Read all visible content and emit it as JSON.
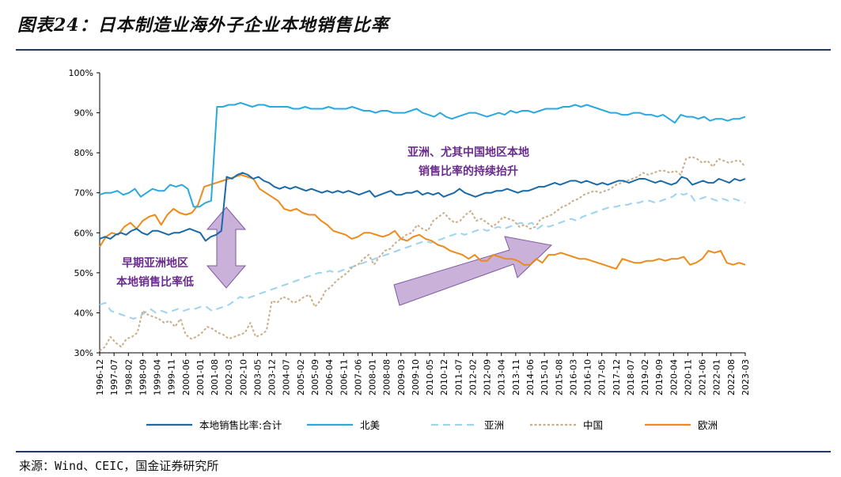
{
  "figure": {
    "title": "图表24：日本制造业海外子企业本地销售比率",
    "source": "来源：Wind、CEIC，国金证券研究所"
  },
  "colors": {
    "total": "#1a6aa8",
    "north_america": "#2aa8e0",
    "asia": "#9cd3f0",
    "china": "#c8ad86",
    "europe": "#ee8a1a",
    "annotation_text": "#6a2c8c",
    "arrow_fill": "#c9b1da",
    "arrow_stroke": "#7f5aa0",
    "title_rule": "#1f3864"
  },
  "chart_data": {
    "type": "line",
    "title": "日本制造业海外子企业本地销售比率",
    "xlabel": "",
    "ylabel": "",
    "ylim": [
      30,
      100
    ],
    "yticks": [
      "30%",
      "40%",
      "50%",
      "60%",
      "70%",
      "80%",
      "90%",
      "100%"
    ],
    "x_range": [
      "1996-12",
      "2023-03"
    ],
    "xticks": [
      "1996-12",
      "1997-07",
      "1998-02",
      "1998-09",
      "1999-04",
      "1999-11",
      "2000-06",
      "2001-01",
      "2001-08",
      "2002-03",
      "2002-10",
      "2003-05",
      "2003-12",
      "2004-07",
      "2005-02",
      "2005-09",
      "2006-04",
      "2006-11",
      "2007-06",
      "2008-01",
      "2008-08",
      "2009-03",
      "2009-10",
      "2010-05",
      "2010-12",
      "2011-07",
      "2012-02",
      "2012-09",
      "2013-04",
      "2013-11",
      "2014-06",
      "2015-01",
      "2015-08",
      "2016-03",
      "2016-10",
      "2017-05",
      "2017-12",
      "2018-07",
      "2019-02",
      "2019-09",
      "2020-04",
      "2020-11",
      "2021-06",
      "2022-01",
      "2022-08",
      "2023-03"
    ],
    "grid": false,
    "legend_position": "bottom",
    "series": [
      {
        "name": "本地销售比率:合计",
        "style": "solid",
        "start": "1996-12",
        "values": [
          58.5,
          59,
          58.5,
          59.5,
          60,
          59.5,
          60.5,
          61,
          60,
          59.5,
          60.5,
          60.5,
          60,
          59.5,
          60,
          60,
          60.5,
          61,
          60.5,
          60,
          58,
          59,
          59.5,
          60.5,
          74,
          73.5,
          74.5,
          75,
          74.5,
          73.5,
          74,
          73,
          72.5,
          71.5,
          71,
          71.5,
          71,
          71.5,
          71,
          70.5,
          71,
          70.5,
          70,
          70.5,
          70,
          70.5,
          70,
          70.5,
          70,
          69.5,
          70,
          70.5,
          69,
          69.5,
          70,
          70.5,
          69.5,
          69.5,
          70,
          70,
          70.5,
          69.5,
          70,
          69.5,
          70,
          69,
          69.5,
          70,
          71,
          70,
          69.5,
          69,
          69.5,
          70,
          70,
          70.5,
          70.5,
          71,
          70.5,
          70,
          70.5,
          70.5,
          71,
          71.5,
          71.5,
          72,
          72.5,
          72,
          72.5,
          73,
          73,
          72.5,
          73,
          72.5,
          72,
          72.5,
          72,
          72.5,
          73,
          73,
          72.5,
          73,
          73.5,
          73.5,
          73,
          72.5,
          73,
          72.5,
          72,
          72.5,
          74,
          73.5,
          72,
          72.5,
          73,
          72.5,
          72.5,
          73.5,
          73,
          72.5,
          73.5,
          73,
          73.5
        ]
      },
      {
        "name": "北美",
        "style": "solid",
        "start": "1996-12",
        "values": [
          69.5,
          70,
          70,
          70.5,
          69.5,
          70,
          71,
          69,
          70,
          71,
          70.5,
          70.5,
          72,
          71.5,
          72,
          71,
          66.5,
          66.5,
          67.5,
          68,
          91.5,
          91.5,
          92,
          92,
          92.5,
          92,
          91.5,
          92,
          92,
          91.5,
          91.5,
          91.5,
          91.5,
          91,
          91,
          91.5,
          91,
          91,
          91,
          91.5,
          91,
          91,
          91,
          91.5,
          91,
          90.5,
          90.5,
          90,
          90.5,
          90.5,
          90,
          90,
          90,
          90.5,
          91,
          90,
          89.5,
          89,
          90,
          89,
          88.5,
          89,
          89.5,
          90,
          90,
          89.5,
          89,
          89.5,
          90,
          89.5,
          90.5,
          90,
          90.5,
          90.5,
          90,
          90.5,
          91,
          91,
          91,
          91.5,
          91.5,
          92,
          91.5,
          92,
          91.5,
          91,
          90.5,
          90,
          90,
          89.5,
          89.5,
          90,
          90,
          89.5,
          89.5,
          89,
          89.5,
          88.5,
          87.5,
          89.5,
          89,
          89,
          88.5,
          89,
          88,
          88.5,
          88.5,
          88,
          88.5,
          88.5,
          89
        ]
      },
      {
        "name": "亚洲",
        "style": "dash",
        "start": "1996-12",
        "values": [
          42,
          42.5,
          40.5,
          40,
          39.5,
          39,
          38.5,
          39,
          40,
          41,
          40,
          40.5,
          40,
          40.5,
          41,
          40.5,
          41,
          41,
          41.5,
          41.5,
          40.5,
          41,
          41.5,
          42,
          43,
          44,
          43.5,
          44,
          44.5,
          45,
          45.5,
          46,
          46.5,
          47,
          47.5,
          48,
          48.5,
          49,
          49.5,
          50,
          50,
          50.5,
          50,
          50.5,
          51,
          51.5,
          52,
          52.5,
          53,
          53.5,
          54,
          54.5,
          55,
          55.5,
          56,
          56.5,
          57,
          57.5,
          58,
          57.5,
          58,
          58.5,
          59,
          59.5,
          60,
          59.5,
          60,
          60.5,
          61,
          60.5,
          61,
          61.5,
          61,
          61.5,
          62,
          62.5,
          62,
          62.5,
          61,
          62,
          61.5,
          62,
          62.5,
          63,
          63.5,
          63,
          64,
          64.5,
          65,
          65.5,
          66,
          66.5,
          66.5,
          67,
          67,
          67.5,
          67.5,
          68,
          68,
          67.5,
          68,
          68.5,
          69,
          70,
          69.5,
          70,
          68,
          68.5,
          69,
          68.5,
          68,
          68.5,
          68,
          68.5,
          68,
          67.5
        ]
      },
      {
        "name": "中国",
        "style": "dot",
        "start": "1996-12",
        "values": [
          30.5,
          31.5,
          34,
          32.5,
          31.5,
          33.5,
          34,
          35,
          40.5,
          39.5,
          39,
          38.5,
          37.5,
          38,
          36.5,
          38.5,
          34.5,
          33.5,
          34,
          35,
          36.5,
          36,
          35,
          34.5,
          33.5,
          34,
          34.5,
          35,
          37.5,
          34,
          34.5,
          35.5,
          43,
          42.5,
          44,
          43.5,
          42.5,
          43,
          44,
          44.5,
          41.5,
          43,
          45.5,
          46.5,
          48,
          49,
          50,
          51.5,
          52,
          53.5,
          54.5,
          52,
          54,
          55.5,
          56,
          57.5,
          58.5,
          59.5,
          60,
          62,
          61,
          60.5,
          63,
          64,
          65,
          63.5,
          62.5,
          63,
          64.5,
          65.5,
          63,
          63.5,
          62.5,
          61.5,
          62.5,
          64,
          63.5,
          63,
          61.5,
          62,
          61,
          61.5,
          63.5,
          64,
          64.5,
          65.5,
          66.5,
          67,
          68,
          68.5,
          69.5,
          70,
          70.5,
          70,
          70.5,
          71,
          72,
          72.5,
          73,
          73.5,
          74,
          75,
          74.5,
          75,
          75.5,
          75.5,
          75,
          75.5,
          74.5,
          78.5,
          79,
          78.5,
          77.5,
          78,
          76.5,
          78.5,
          78,
          77.5,
          78,
          78,
          76.5
        ]
      },
      {
        "name": "欧洲",
        "style": "solid",
        "start": "1996-12",
        "values": [
          56.5,
          59,
          60,
          59.5,
          61.5,
          62.5,
          61,
          63,
          64,
          64.5,
          62,
          64.5,
          66,
          65,
          64.5,
          65,
          67,
          71.5,
          72,
          72.5,
          73,
          73.5,
          74,
          74.5,
          74,
          73.5,
          71,
          70,
          69,
          68,
          66,
          65.5,
          66,
          65,
          64.5,
          64.5,
          63,
          62,
          60.5,
          60,
          59.5,
          58.5,
          59,
          60,
          60,
          59.5,
          59,
          59.5,
          60.5,
          58.5,
          58,
          59,
          59.5,
          58.5,
          58,
          57,
          56.5,
          55.5,
          55,
          54.5,
          53.5,
          54.5,
          53,
          53,
          54.5,
          54,
          53.5,
          53.5,
          53,
          52,
          52,
          53.5,
          52.5,
          54.5,
          54.5,
          55,
          54.5,
          54,
          53.5,
          53.5,
          53,
          52.5,
          52,
          51.5,
          51,
          53.5,
          53,
          52.5,
          52.5,
          53,
          53,
          53.5,
          53,
          53.5,
          53.5,
          54,
          52,
          52.5,
          53.5,
          55.5,
          55,
          55.5,
          52.5,
          52,
          52.5,
          52
        ]
      }
    ],
    "annotations": [
      {
        "text": "亚洲、尤其中国地区本地",
        "type": "text"
      },
      {
        "text": "销售比率的持续抬升",
        "type": "text"
      },
      {
        "text": "早期亚洲地区",
        "type": "text"
      },
      {
        "text": "本地销售比率低",
        "type": "text"
      }
    ]
  }
}
